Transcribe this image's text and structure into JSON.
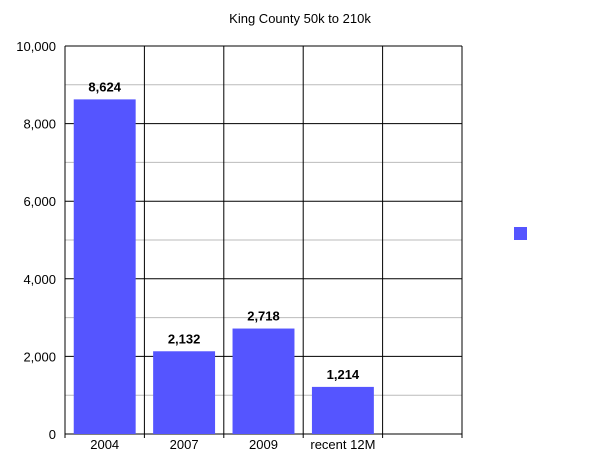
{
  "chart_data": {
    "type": "bar",
    "title": "King County 50k to 210k",
    "xlabel": "",
    "ylabel": "",
    "categories": [
      "2004",
      "2007",
      "2009",
      "recent 12M",
      ""
    ],
    "values": [
      8624,
      2132,
      2718,
      1214,
      null
    ],
    "data_labels": [
      "8,624",
      "2,132",
      "2,718",
      "1,214",
      ""
    ],
    "ylim": [
      0,
      10000
    ],
    "yticks": [
      0,
      2000,
      4000,
      6000,
      8000,
      10000
    ],
    "ytick_labels": [
      "0",
      "2,000",
      "4,000",
      "6,000",
      "8,000",
      "10,000"
    ],
    "minor_gridlines": true,
    "grid": true,
    "legend": {
      "placement": "right",
      "entries": [
        ""
      ]
    },
    "colors": {
      "bar": "#5555ff",
      "grid_major": "#000000",
      "grid_minor": "#bbbbbb"
    }
  }
}
